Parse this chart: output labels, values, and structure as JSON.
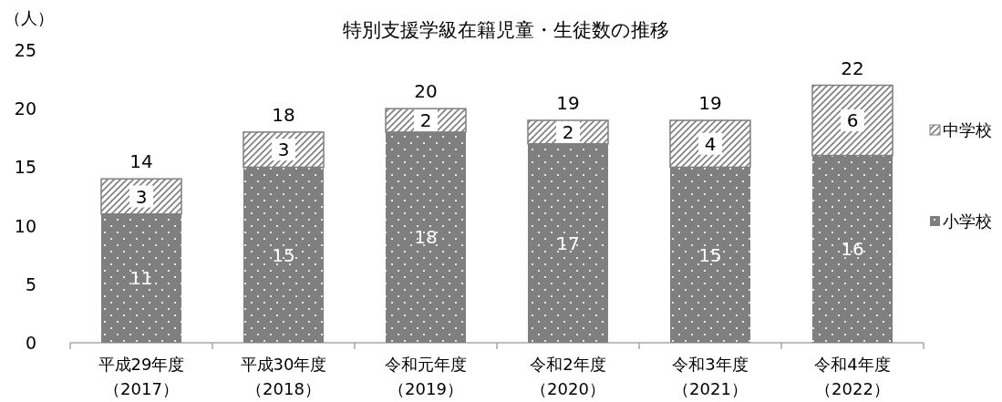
{
  "chart_data": {
    "type": "bar",
    "title": "特別支援学級在籍児童・生徒数の推移",
    "ylabel": "（人）",
    "categories": [
      "平成29年度（2017）",
      "平成30年度（2018）",
      "令和元年度（2019）",
      "令和2年度（2020）",
      "令和3年度（2021）",
      "令和4年度（2022）"
    ],
    "series": [
      {
        "name": "小学校",
        "color": "#7f7f7f",
        "values": [
          11,
          15,
          18,
          17,
          15,
          16
        ]
      },
      {
        "name": "中学校",
        "color": "#7f7f7f",
        "values": [
          3,
          3,
          2,
          2,
          4,
          6
        ]
      }
    ],
    "stacked": true,
    "ylim": [
      0,
      25
    ],
    "yticks": [
      0,
      5,
      10,
      15,
      20,
      25
    ],
    "data_labels": true,
    "totals": [
      "14",
      "18",
      "20",
      "19",
      "19",
      "22"
    ],
    "legend": "right",
    "grid": false
  }
}
